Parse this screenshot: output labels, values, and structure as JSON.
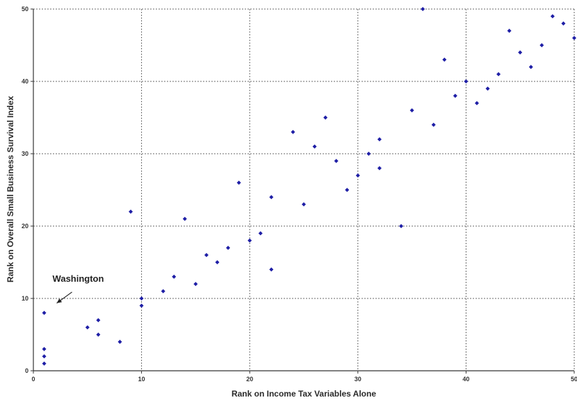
{
  "chart_data": {
    "type": "scatter",
    "title": "",
    "xlabel": "Rank on Income Tax Variables Alone",
    "ylabel": "Rank on Overall Small Business Survival Index",
    "xlim": [
      0,
      50
    ],
    "ylim": [
      0,
      50
    ],
    "xticks": [
      0,
      10,
      20,
      30,
      40,
      50
    ],
    "yticks": [
      0,
      10,
      20,
      30,
      40,
      50
    ],
    "grid": true,
    "marker_color": "#1f1fa6",
    "points": [
      {
        "x": 1,
        "y": 1
      },
      {
        "x": 1,
        "y": 2
      },
      {
        "x": 1,
        "y": 3
      },
      {
        "x": 1,
        "y": 8
      },
      {
        "x": 5,
        "y": 6
      },
      {
        "x": 6,
        "y": 5
      },
      {
        "x": 6,
        "y": 7
      },
      {
        "x": 8,
        "y": 4
      },
      {
        "x": 9,
        "y": 22
      },
      {
        "x": 10,
        "y": 9
      },
      {
        "x": 10,
        "y": 10
      },
      {
        "x": 12,
        "y": 11
      },
      {
        "x": 13,
        "y": 13
      },
      {
        "x": 14,
        "y": 21
      },
      {
        "x": 15,
        "y": 12
      },
      {
        "x": 16,
        "y": 16
      },
      {
        "x": 17,
        "y": 15
      },
      {
        "x": 18,
        "y": 17
      },
      {
        "x": 19,
        "y": 26
      },
      {
        "x": 20,
        "y": 18
      },
      {
        "x": 21,
        "y": 19
      },
      {
        "x": 22,
        "y": 24
      },
      {
        "x": 22,
        "y": 14
      },
      {
        "x": 24,
        "y": 33
      },
      {
        "x": 25,
        "y": 23
      },
      {
        "x": 26,
        "y": 31
      },
      {
        "x": 27,
        "y": 35
      },
      {
        "x": 28,
        "y": 29
      },
      {
        "x": 29,
        "y": 25
      },
      {
        "x": 30,
        "y": 27
      },
      {
        "x": 31,
        "y": 30
      },
      {
        "x": 32,
        "y": 32
      },
      {
        "x": 32,
        "y": 28
      },
      {
        "x": 34,
        "y": 20
      },
      {
        "x": 35,
        "y": 36
      },
      {
        "x": 36,
        "y": 50
      },
      {
        "x": 37,
        "y": 34
      },
      {
        "x": 38,
        "y": 43
      },
      {
        "x": 39,
        "y": 38
      },
      {
        "x": 40,
        "y": 40
      },
      {
        "x": 41,
        "y": 37
      },
      {
        "x": 42,
        "y": 39
      },
      {
        "x": 43,
        "y": 41
      },
      {
        "x": 44,
        "y": 47
      },
      {
        "x": 45,
        "y": 44
      },
      {
        "x": 46,
        "y": 42
      },
      {
        "x": 47,
        "y": 45
      },
      {
        "x": 48,
        "y": 49
      },
      {
        "x": 49,
        "y": 48
      },
      {
        "x": 50,
        "y": 46
      }
    ],
    "annotations": [
      {
        "text": "Washington",
        "x": 1,
        "y": 8
      }
    ]
  }
}
